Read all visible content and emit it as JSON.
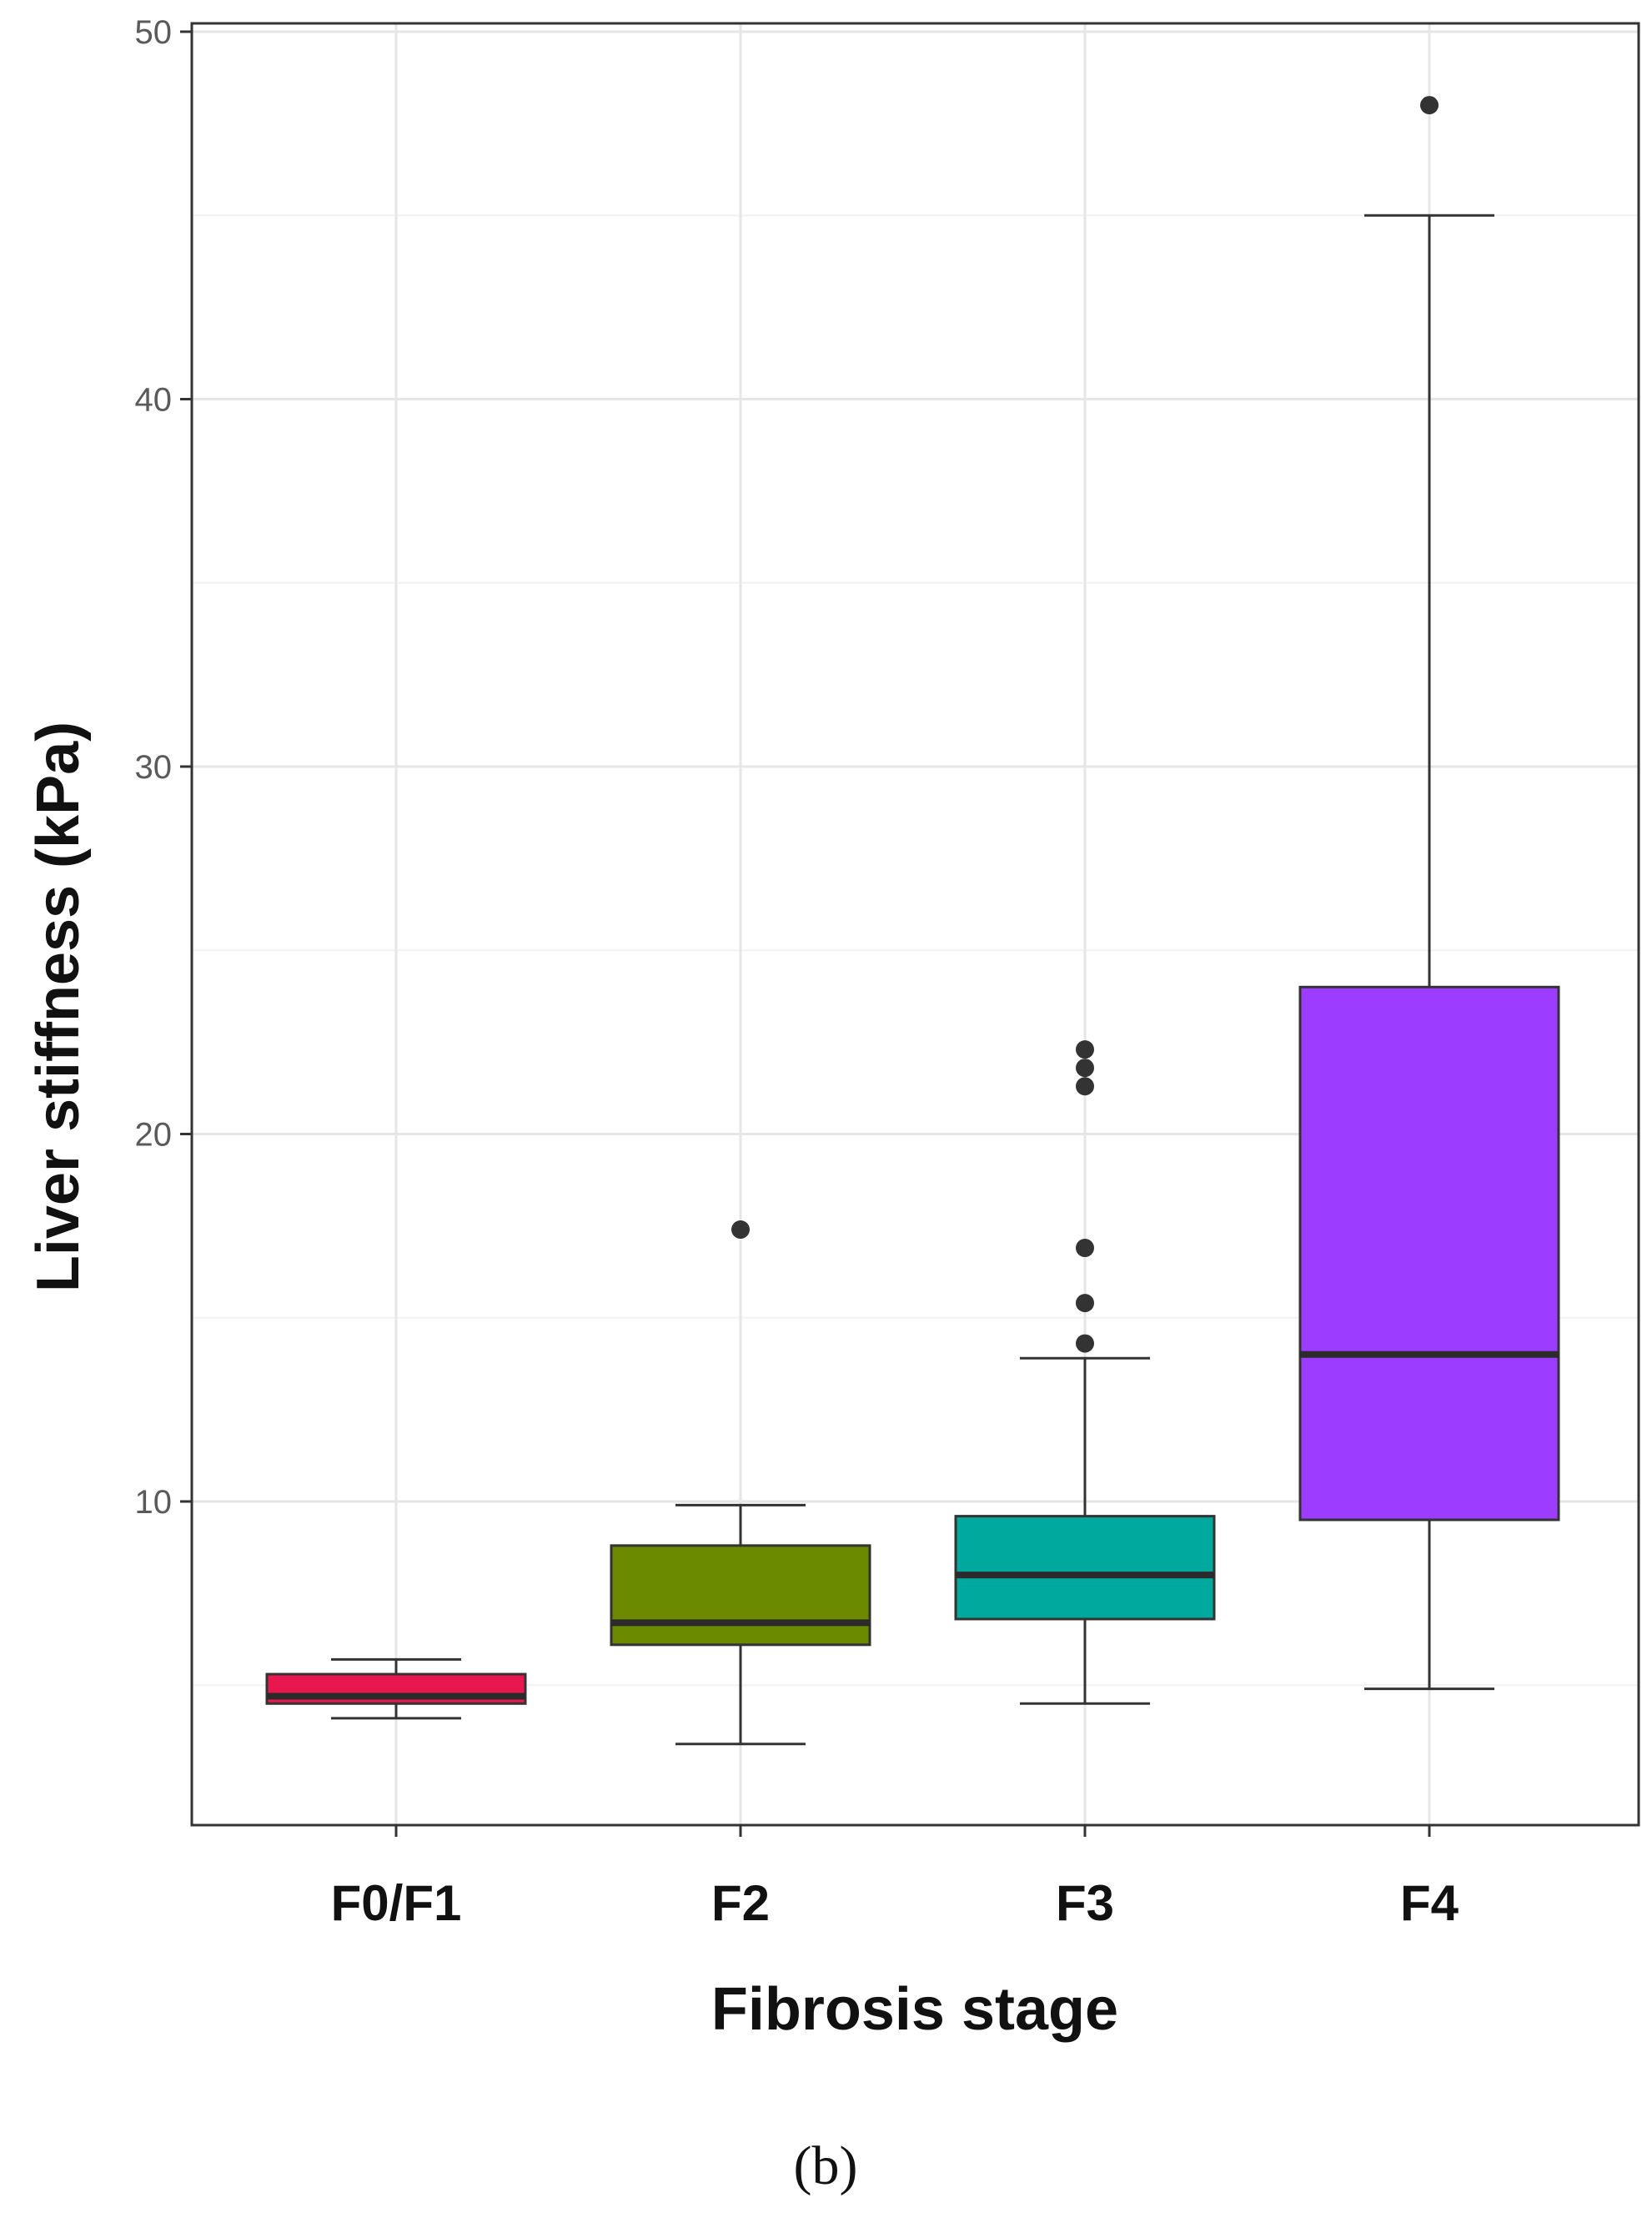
{
  "chart_data": {
    "type": "box",
    "title": "",
    "xlabel": "Fibrosis stage",
    "ylabel": "Liver stiffness (kPa)",
    "ylim": [
      0,
      50
    ],
    "yticks": [
      10,
      20,
      30,
      40,
      50
    ],
    "grid": true,
    "legend": "none",
    "panel_label": "(b)",
    "categories": [
      "F0/F1",
      "F2",
      "F3",
      "F4"
    ],
    "boxes": [
      {
        "category": "F0/F1",
        "whisker_low": 4.1,
        "q1": 4.5,
        "median": 4.7,
        "q3": 5.3,
        "whisker_high": 5.7,
        "outliers": [],
        "color": "#e8174f"
      },
      {
        "category": "F2",
        "whisker_low": 3.4,
        "q1": 6.1,
        "median": 6.7,
        "q3": 8.8,
        "whisker_high": 9.9,
        "outliers": [
          17.4
        ],
        "color": "#6b8a00"
      },
      {
        "category": "F3",
        "whisker_low": 4.5,
        "q1": 6.8,
        "median": 8.0,
        "q3": 9.6,
        "whisker_high": 13.9,
        "outliers": [
          14.3,
          15.4,
          16.9,
          21.3,
          21.8,
          22.3
        ],
        "color": "#00a99d"
      },
      {
        "category": "F4",
        "whisker_low": 4.9,
        "q1": 9.5,
        "median": 14.0,
        "q3": 24.0,
        "whisker_high": 45.0,
        "outliers": [
          48.0
        ],
        "color": "#9b3cfe"
      }
    ]
  }
}
